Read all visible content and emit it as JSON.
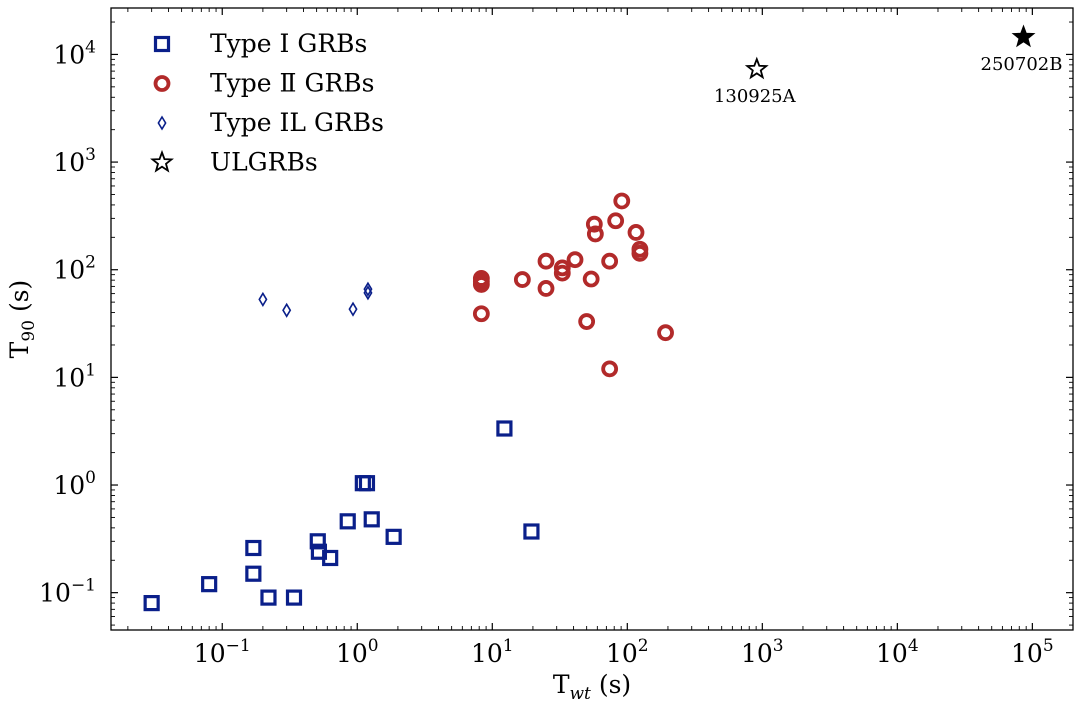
{
  "chart_data": {
    "type": "scatter",
    "x_scale": "log",
    "y_scale": "log",
    "xlim": [
      0.015,
      200000
    ],
    "ylim": [
      0.045,
      27000
    ],
    "x_ticks": [
      {
        "value": 0.1,
        "base": "10",
        "exp": "−1"
      },
      {
        "value": 1,
        "base": "10",
        "exp": "0"
      },
      {
        "value": 10,
        "base": "10",
        "exp": "1"
      },
      {
        "value": 100,
        "base": "10",
        "exp": "2"
      },
      {
        "value": 1000,
        "base": "10",
        "exp": "3"
      },
      {
        "value": 10000,
        "base": "10",
        "exp": "4"
      },
      {
        "value": 100000,
        "base": "10",
        "exp": "5"
      }
    ],
    "y_ticks": [
      {
        "value": 0.1,
        "base": "10",
        "exp": "−1"
      },
      {
        "value": 1,
        "base": "10",
        "exp": "0"
      },
      {
        "value": 10,
        "base": "10",
        "exp": "1"
      },
      {
        "value": 100,
        "base": "10",
        "exp": "2"
      },
      {
        "value": 1000,
        "base": "10",
        "exp": "3"
      },
      {
        "value": 10000,
        "base": "10",
        "exp": "4"
      }
    ],
    "xlabel": {
      "main": "T",
      "sub": "wt",
      "suffix": " (s)"
    },
    "ylabel": {
      "main": "T",
      "sub": "90",
      "suffix": " (s)"
    },
    "legend_position": "top-left",
    "grid": false,
    "series": [
      {
        "name": "Type I GRBs",
        "marker": "square",
        "color": "#0a1f8a",
        "points": [
          {
            "x": 0.03,
            "y": 0.08
          },
          {
            "x": 0.08,
            "y": 0.12
          },
          {
            "x": 0.17,
            "y": 0.26
          },
          {
            "x": 0.17,
            "y": 0.15
          },
          {
            "x": 0.22,
            "y": 0.09
          },
          {
            "x": 0.34,
            "y": 0.09
          },
          {
            "x": 0.51,
            "y": 0.3
          },
          {
            "x": 0.52,
            "y": 0.24
          },
          {
            "x": 0.63,
            "y": 0.21
          },
          {
            "x": 0.85,
            "y": 0.46
          },
          {
            "x": 1.1,
            "y": 1.04
          },
          {
            "x": 1.18,
            "y": 1.04
          },
          {
            "x": 1.28,
            "y": 0.48
          },
          {
            "x": 1.86,
            "y": 0.33
          },
          {
            "x": 12.3,
            "y": 3.35
          },
          {
            "x": 19.5,
            "y": 0.37
          }
        ]
      },
      {
        "name": "Type Ⅱ GRBs",
        "marker": "circle",
        "color": "#b22a2a",
        "points": [
          {
            "x": 8.3,
            "y": 83
          },
          {
            "x": 8.3,
            "y": 78
          },
          {
            "x": 8.3,
            "y": 73
          },
          {
            "x": 8.3,
            "y": 39
          },
          {
            "x": 16.7,
            "y": 81
          },
          {
            "x": 25,
            "y": 120
          },
          {
            "x": 25,
            "y": 67
          },
          {
            "x": 33,
            "y": 104
          },
          {
            "x": 33,
            "y": 93
          },
          {
            "x": 41,
            "y": 124
          },
          {
            "x": 50,
            "y": 33
          },
          {
            "x": 54,
            "y": 82
          },
          {
            "x": 57,
            "y": 265
          },
          {
            "x": 58,
            "y": 215
          },
          {
            "x": 74,
            "y": 120
          },
          {
            "x": 74,
            "y": 12
          },
          {
            "x": 82,
            "y": 285
          },
          {
            "x": 91,
            "y": 435
          },
          {
            "x": 116,
            "y": 222
          },
          {
            "x": 124,
            "y": 155
          },
          {
            "x": 124,
            "y": 142
          },
          {
            "x": 192,
            "y": 26
          }
        ]
      },
      {
        "name": "Type IL GRBs",
        "marker": "diamond",
        "color": "#0a1f8a",
        "points": [
          {
            "x": 0.2,
            "y": 53
          },
          {
            "x": 0.3,
            "y": 42
          },
          {
            "x": 0.93,
            "y": 43
          },
          {
            "x": 1.2,
            "y": 66
          },
          {
            "x": 1.2,
            "y": 61
          }
        ]
      },
      {
        "name": "ULGRBs",
        "marker": "star",
        "color": "#000000",
        "points": [
          {
            "x": 910,
            "y": 7300,
            "label": "130925A",
            "filled": false
          },
          {
            "x": 86000,
            "y": 14500,
            "label": "250702B",
            "filled": true
          }
        ]
      }
    ]
  }
}
